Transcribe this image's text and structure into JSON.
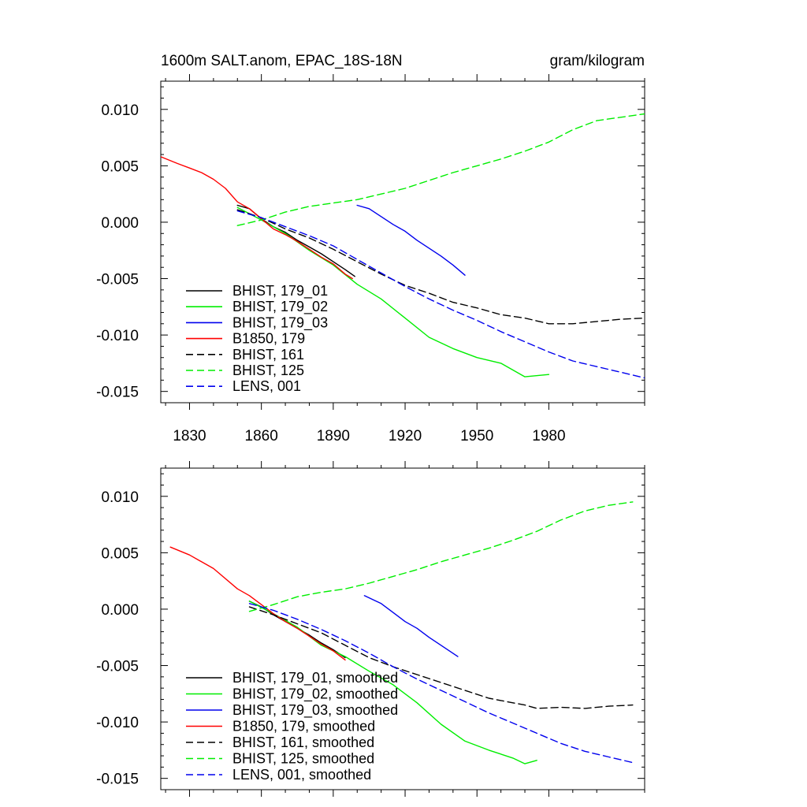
{
  "chart_data": [
    {
      "type": "line",
      "panel": "top",
      "title_left": "1600m SALT.anom, EPAC_18S-18N",
      "title_right": "gram/kilogram",
      "xlabel": "",
      "ylabel": "",
      "xlim": [
        1818,
        2020
      ],
      "ylim": [
        -0.016,
        0.0125
      ],
      "xticks": [
        1830,
        1860,
        1890,
        1920,
        1950,
        1980
      ],
      "xtick_labels": [
        "1830",
        "1860",
        "1890",
        "1920",
        "1950",
        "1980"
      ],
      "yticks": [
        0.01,
        0.005,
        0.0,
        -0.005,
        -0.01,
        -0.015
      ],
      "ytick_labels": [
        "0.010",
        "0.005",
        "0.000",
        "-0.005",
        "-0.010",
        "-0.015"
      ],
      "legend_position": "bottom-left",
      "series": [
        {
          "name": "BHIST, 179_01",
          "color": "#000000",
          "dash": "solid",
          "x": [
            1850,
            1855,
            1860,
            1865,
            1870,
            1875,
            1880,
            1885,
            1890,
            1895,
            1899
          ],
          "y": [
            0.0015,
            0.0012,
            0.0003,
            -0.0004,
            -0.0009,
            -0.0016,
            -0.0022,
            -0.0028,
            -0.0035,
            -0.0042,
            -0.0048
          ]
        },
        {
          "name": "BHIST, 179_02",
          "color": "#00ee00",
          "dash": "solid",
          "x": [
            1850,
            1860,
            1870,
            1880,
            1890,
            1900,
            1910,
            1920,
            1930,
            1940,
            1950,
            1960,
            1970,
            1980
          ],
          "y": [
            0.0013,
            0.0002,
            -0.001,
            -0.0025,
            -0.0038,
            -0.0055,
            -0.0068,
            -0.0085,
            -0.0102,
            -0.0112,
            -0.012,
            -0.0125,
            -0.0137,
            -0.0135
          ]
        },
        {
          "name": "BHIST, 179_03",
          "color": "#0000ee",
          "dash": "solid",
          "x": [
            1900,
            1905,
            1910,
            1915,
            1920,
            1925,
            1930,
            1935,
            1940,
            1945
          ],
          "y": [
            0.0015,
            0.0012,
            0.0005,
            -0.0002,
            -0.0008,
            -0.0016,
            -0.0023,
            -0.003,
            -0.0038,
            -0.0047
          ]
        },
        {
          "name": "B1850, 179",
          "color": "#ff0000",
          "dash": "solid",
          "x": [
            1818,
            1825,
            1830,
            1835,
            1840,
            1845,
            1850,
            1855,
            1860,
            1865,
            1870,
            1875,
            1880,
            1885,
            1890,
            1895,
            1898
          ],
          "y": [
            0.0058,
            0.0052,
            0.0048,
            0.0044,
            0.0038,
            0.003,
            0.0018,
            0.0012,
            0.0003,
            -0.0006,
            -0.0011,
            -0.0017,
            -0.0024,
            -0.0031,
            -0.0037,
            -0.0046,
            -0.005
          ]
        },
        {
          "name": "BHIST, 161",
          "color": "#000000",
          "dash": "dashed",
          "x": [
            1850,
            1860,
            1870,
            1880,
            1890,
            1900,
            1910,
            1920,
            1930,
            1940,
            1950,
            1960,
            1970,
            1980,
            1990,
            2000,
            2010,
            2020
          ],
          "y": [
            0.0011,
            0.0004,
            -0.0006,
            -0.0014,
            -0.0024,
            -0.0035,
            -0.0046,
            -0.0056,
            -0.0063,
            -0.0071,
            -0.0076,
            -0.0082,
            -0.0085,
            -0.009,
            -0.009,
            -0.0088,
            -0.0086,
            -0.0085
          ]
        },
        {
          "name": "BHIST, 125",
          "color": "#00ee00",
          "dash": "dashed",
          "x": [
            1850,
            1860,
            1870,
            1880,
            1890,
            1900,
            1910,
            1920,
            1930,
            1940,
            1950,
            1960,
            1970,
            1980,
            1990,
            2000,
            2010,
            2020
          ],
          "y": [
            -0.0003,
            0.0002,
            0.0009,
            0.0014,
            0.0017,
            0.002,
            0.0025,
            0.003,
            0.0037,
            0.0044,
            0.005,
            0.0056,
            0.0063,
            0.0071,
            0.0082,
            0.009,
            0.0093,
            0.0096
          ]
        },
        {
          "name": "LENS, 001",
          "color": "#0000ee",
          "dash": "dashed",
          "x": [
            1850,
            1860,
            1870,
            1880,
            1890,
            1900,
            1910,
            1920,
            1930,
            1940,
            1950,
            1960,
            1970,
            1980,
            1990,
            2000,
            2010,
            2020
          ],
          "y": [
            0.001,
            0.0004,
            -0.0004,
            -0.0012,
            -0.0021,
            -0.0033,
            -0.0045,
            -0.0057,
            -0.0068,
            -0.0078,
            -0.0087,
            -0.0097,
            -0.0106,
            -0.0115,
            -0.0123,
            -0.0128,
            -0.0133,
            -0.0138
          ]
        }
      ]
    },
    {
      "type": "line",
      "panel": "bottom",
      "xlabel": "",
      "ylabel": "",
      "xlim": [
        1818,
        2020
      ],
      "ylim": [
        -0.016,
        0.0125
      ],
      "xticks": [
        1830,
        1860,
        1890,
        1920,
        1950,
        1980
      ],
      "xtick_labels": [],
      "yticks": [
        0.01,
        0.005,
        0.0,
        -0.005,
        -0.01,
        -0.015
      ],
      "ytick_labels": [
        "0.010",
        "0.005",
        "0.000",
        "-0.005",
        "-0.010",
        "-0.015"
      ],
      "legend_position": "bottom-left",
      "series": [
        {
          "name": "BHIST, 179_01, smoothed",
          "color": "#000000",
          "dash": "solid",
          "x": [
            1855,
            1860,
            1865,
            1870,
            1875,
            1880,
            1885,
            1890,
            1895
          ],
          "y": [
            0.0007,
            0.0002,
            -0.0005,
            -0.0011,
            -0.0017,
            -0.0023,
            -0.003,
            -0.0036,
            -0.0043
          ]
        },
        {
          "name": "BHIST, 179_02, smoothed",
          "color": "#00ee00",
          "dash": "solid",
          "x": [
            1855,
            1865,
            1875,
            1885,
            1895,
            1905,
            1915,
            1925,
            1935,
            1945,
            1955,
            1965,
            1970,
            1975
          ],
          "y": [
            0.0007,
            -0.0004,
            -0.0016,
            -0.0032,
            -0.0042,
            -0.0055,
            -0.0067,
            -0.0083,
            -0.0102,
            -0.0117,
            -0.0125,
            -0.0132,
            -0.0137,
            -0.0134
          ]
        },
        {
          "name": "BHIST, 179_03, smoothed",
          "color": "#0000ee",
          "dash": "solid",
          "x": [
            1903,
            1910,
            1915,
            1920,
            1925,
            1930,
            1935,
            1942
          ],
          "y": [
            0.0012,
            0.0005,
            -0.0003,
            -0.0011,
            -0.0017,
            -0.0025,
            -0.0032,
            -0.0042
          ]
        },
        {
          "name": "B1850, 179, smoothed",
          "color": "#ff0000",
          "dash": "solid",
          "x": [
            1822,
            1830,
            1840,
            1850,
            1855,
            1860,
            1865,
            1870,
            1875,
            1880,
            1885,
            1890,
            1895
          ],
          "y": [
            0.0055,
            0.0048,
            0.0036,
            0.0018,
            0.0012,
            0.0004,
            -0.0004,
            -0.0011,
            -0.0017,
            -0.0024,
            -0.0031,
            -0.0037,
            -0.0045
          ]
        },
        {
          "name": "BHIST, 161, smoothed",
          "color": "#000000",
          "dash": "dashed",
          "x": [
            1855,
            1865,
            1875,
            1885,
            1895,
            1905,
            1915,
            1925,
            1935,
            1945,
            1955,
            1965,
            1970,
            1975,
            1985,
            1995,
            2005,
            2015
          ],
          "y": [
            0.0002,
            -0.0005,
            -0.0013,
            -0.0021,
            -0.0032,
            -0.0043,
            -0.0051,
            -0.0058,
            -0.0065,
            -0.0072,
            -0.0079,
            -0.0083,
            -0.0085,
            -0.0088,
            -0.0087,
            -0.0088,
            -0.0086,
            -0.0085
          ]
        },
        {
          "name": "BHIST, 125, smoothed",
          "color": "#00ee00",
          "dash": "dashed",
          "x": [
            1855,
            1865,
            1875,
            1885,
            1895,
            1905,
            1915,
            1925,
            1935,
            1945,
            1955,
            1965,
            1975,
            1985,
            1995,
            2005,
            2015
          ],
          "y": [
            -0.0002,
            0.0004,
            0.0011,
            0.0015,
            0.0018,
            0.0023,
            0.0029,
            0.0035,
            0.0042,
            0.0048,
            0.0054,
            0.0061,
            0.0069,
            0.0079,
            0.0087,
            0.0092,
            0.0095
          ]
        },
        {
          "name": "LENS, 001, smoothed",
          "color": "#0000ee",
          "dash": "dashed",
          "x": [
            1855,
            1865,
            1875,
            1885,
            1895,
            1905,
            1915,
            1925,
            1935,
            1945,
            1955,
            1965,
            1975,
            1985,
            1995,
            2005,
            2015
          ],
          "y": [
            0.0005,
            -0.0001,
            -0.0009,
            -0.0018,
            -0.0028,
            -0.0039,
            -0.0051,
            -0.0062,
            -0.0072,
            -0.0082,
            -0.0092,
            -0.0101,
            -0.011,
            -0.0119,
            -0.0126,
            -0.0131,
            -0.0136
          ]
        }
      ]
    }
  ]
}
